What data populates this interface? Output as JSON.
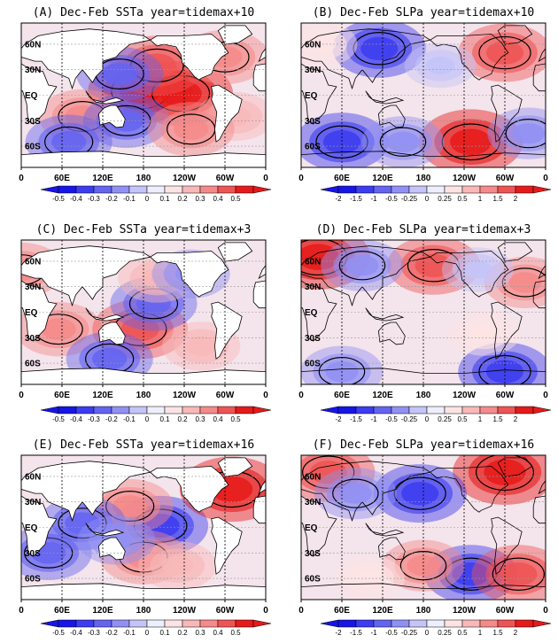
{
  "chart_data": [
    {
      "type": "heatmap",
      "panel": "A",
      "title": "(A) Dec-Feb SSTa year=tidemax+10",
      "variable": "SSTa",
      "xticks": [
        "0",
        "60E",
        "120E",
        "180",
        "120W",
        "60W",
        "0"
      ],
      "yticks": [
        "60N",
        "30N",
        "EQ",
        "30S",
        "60S"
      ],
      "colorbar_levels": [
        "-0.5",
        "-0.4",
        "-0.3",
        "-0.2",
        "-0.1",
        "0",
        "0.1",
        "0.2",
        "0.3",
        "0.4",
        "0.5"
      ],
      "anomalies": [
        {
          "lon": 175,
          "lat": 5,
          "value": 0.5
        },
        {
          "lon": 235,
          "lat": 2,
          "value": 0.5
        },
        {
          "lon": 200,
          "lat": 35,
          "value": 0.4
        },
        {
          "lon": 145,
          "lat": 25,
          "value": -0.3
        },
        {
          "lon": 90,
          "lat": -25,
          "value": 0.3
        },
        {
          "lon": 70,
          "lat": -55,
          "value": -0.3
        },
        {
          "lon": 300,
          "lat": 45,
          "value": 0.3
        },
        {
          "lon": 315,
          "lat": -25,
          "value": 0.2
        },
        {
          "lon": 155,
          "lat": -30,
          "value": -0.3
        },
        {
          "lon": 250,
          "lat": -40,
          "value": 0.3
        }
      ]
    },
    {
      "type": "heatmap",
      "panel": "B",
      "title": "(B) Dec-Feb SLPa year=tidemax+10",
      "variable": "SLPa",
      "xticks": [
        "0",
        "60E",
        "120E",
        "180",
        "120W",
        "60W",
        "0"
      ],
      "yticks": [
        "60N",
        "30N",
        "EQ",
        "30S",
        "60S"
      ],
      "colorbar_levels": [
        "-2",
        "-1.5",
        "-1",
        "-0.5",
        "-0.25",
        "0",
        "0.25",
        "0.5",
        "1",
        "1.5",
        "2"
      ],
      "anomalies": [
        {
          "lon": 115,
          "lat": 55,
          "value": -1.5
        },
        {
          "lon": 300,
          "lat": 50,
          "value": 1.5
        },
        {
          "lon": 250,
          "lat": -55,
          "value": 2
        },
        {
          "lon": 60,
          "lat": -55,
          "value": -1.5
        },
        {
          "lon": 205,
          "lat": 35,
          "value": -0.5
        },
        {
          "lon": 30,
          "lat": 60,
          "value": 0.5
        },
        {
          "lon": 150,
          "lat": -55,
          "value": -1
        },
        {
          "lon": 335,
          "lat": -45,
          "value": -1
        }
      ]
    },
    {
      "type": "heatmap",
      "panel": "C",
      "title": "(C) Dec-Feb SSTa year=tidemax+3",
      "variable": "SSTa",
      "xticks": [
        "0",
        "60E",
        "120E",
        "180",
        "120W",
        "60W",
        "0"
      ],
      "yticks": [
        "60N",
        "30N",
        "EQ",
        "30S",
        "60S"
      ],
      "colorbar_levels": [
        "-0.5",
        "-0.4",
        "-0.3",
        "-0.2",
        "-0.1",
        "0",
        "0.1",
        "0.2",
        "0.3",
        "0.4",
        "0.5"
      ],
      "anomalies": [
        {
          "lon": 55,
          "lat": -20,
          "value": 0.3
        },
        {
          "lon": 175,
          "lat": -20,
          "value": 0.4
        },
        {
          "lon": 195,
          "lat": 10,
          "value": -0.3
        },
        {
          "lon": 130,
          "lat": -55,
          "value": -0.3
        },
        {
          "lon": 200,
          "lat": 40,
          "value": 0.2
        },
        {
          "lon": 0,
          "lat": 50,
          "value": 0.3
        },
        {
          "lon": 250,
          "lat": 45,
          "value": -0.2
        },
        {
          "lon": 265,
          "lat": -40,
          "value": 0.2
        }
      ]
    },
    {
      "type": "heatmap",
      "panel": "D",
      "title": "(D) Dec-Feb SLPa year=tidemax+3",
      "variable": "SLPa",
      "xticks": [
        "0",
        "60E",
        "120E",
        "180",
        "120W",
        "60W",
        "0"
      ],
      "yticks": [
        "60N",
        "30N",
        "EQ",
        "30S",
        "60S"
      ],
      "colorbar_levels": [
        "-2",
        "-1.5",
        "-1",
        "-0.5",
        "-0.25",
        "0",
        "0.25",
        "0.5",
        "1",
        "1.5",
        "2"
      ],
      "anomalies": [
        {
          "lon": 25,
          "lat": 65,
          "value": 2
        },
        {
          "lon": 195,
          "lat": 55,
          "value": 1.5
        },
        {
          "lon": 330,
          "lat": 35,
          "value": 1
        },
        {
          "lon": 90,
          "lat": 55,
          "value": -1
        },
        {
          "lon": 300,
          "lat": -70,
          "value": -1.5
        },
        {
          "lon": 60,
          "lat": -70,
          "value": -1
        },
        {
          "lon": 270,
          "lat": -25,
          "value": 0.5
        },
        {
          "lon": 260,
          "lat": 50,
          "value": -0.5
        }
      ]
    },
    {
      "type": "heatmap",
      "panel": "E",
      "title": "(E) Dec-Feb SSTa year=tidemax+16",
      "variable": "SSTa",
      "xticks": [
        "0",
        "60E",
        "120E",
        "180",
        "120W",
        "60W",
        "0"
      ],
      "yticks": [
        "60N",
        "30N",
        "EQ",
        "30S",
        "60S"
      ],
      "colorbar_levels": [
        "-0.5",
        "-0.4",
        "-0.3",
        "-0.2",
        "-0.1",
        "0",
        "0.1",
        "0.2",
        "0.3",
        "0.4",
        "0.5"
      ],
      "anomalies": [
        {
          "lon": 205,
          "lat": 2,
          "value": -0.4
        },
        {
          "lon": 160,
          "lat": 25,
          "value": 0.3
        },
        {
          "lon": 310,
          "lat": 45,
          "value": 0.5
        },
        {
          "lon": 40,
          "lat": -30,
          "value": -0.3
        },
        {
          "lon": 180,
          "lat": -35,
          "value": 0.3
        },
        {
          "lon": 230,
          "lat": -45,
          "value": 0.2
        },
        {
          "lon": 90,
          "lat": 5,
          "value": -0.3
        },
        {
          "lon": 140,
          "lat": -15,
          "value": -0.2
        }
      ]
    },
    {
      "type": "heatmap",
      "panel": "F",
      "title": "(F) Dec-Feb SLPa year=tidemax+16",
      "variable": "SLPa",
      "xticks": [
        "0",
        "60E",
        "120E",
        "180",
        "120W",
        "60W",
        "0"
      ],
      "yticks": [
        "60N",
        "30N",
        "EQ",
        "30S",
        "60S"
      ],
      "colorbar_levels": [
        "-2",
        "-1.5",
        "-1",
        "-0.5",
        "-0.25",
        "0",
        "0.25",
        "0.5",
        "1",
        "1.5",
        "2"
      ],
      "anomalies": [
        {
          "lon": 300,
          "lat": 65,
          "value": 2
        },
        {
          "lon": 40,
          "lat": 65,
          "value": 1.5
        },
        {
          "lon": 175,
          "lat": 40,
          "value": -1.5
        },
        {
          "lon": 250,
          "lat": -55,
          "value": -1.5
        },
        {
          "lon": 320,
          "lat": -55,
          "value": 1.5
        },
        {
          "lon": 180,
          "lat": -45,
          "value": 1
        },
        {
          "lon": 80,
          "lat": 40,
          "value": -1
        },
        {
          "lon": 100,
          "lat": -60,
          "value": 0.5
        }
      ]
    }
  ]
}
